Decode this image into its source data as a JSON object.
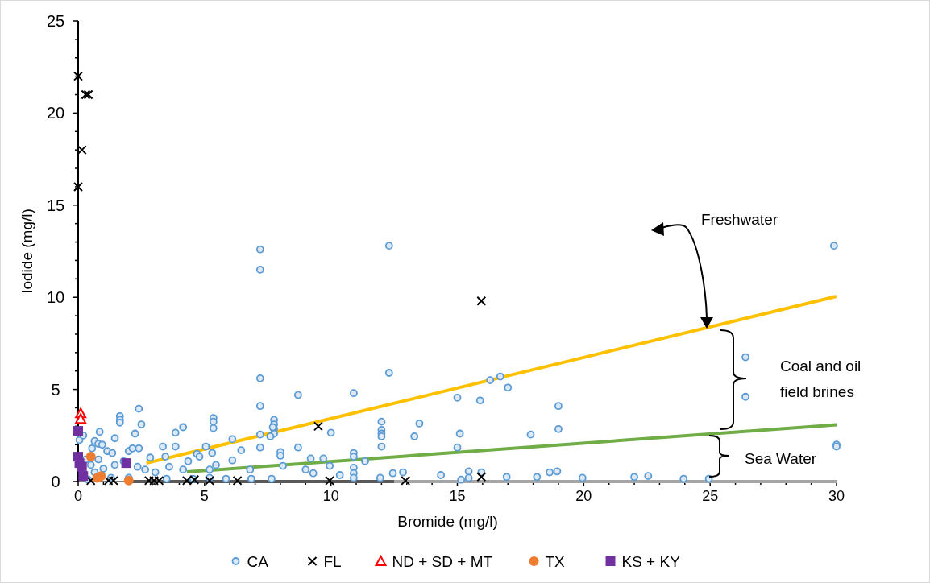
{
  "chart_data": {
    "type": "scatter",
    "xlabel": "Bromide (mg/l)",
    "ylabel": "Iodide (mg/l)",
    "xlim": [
      0,
      30
    ],
    "ylim": [
      0,
      25
    ],
    "xticks": [
      0,
      {
        "value": 1,
        "label": null
      },
      {
        "value": 2,
        "label": null
      },
      {
        "value": 3,
        "label": null
      },
      {
        "value": 4,
        "label": null
      },
      5,
      {
        "value": 6,
        "label": null
      },
      {
        "value": 7,
        "label": null
      },
      {
        "value": 8,
        "label": null
      },
      {
        "value": 9,
        "label": null
      },
      10,
      {
        "value": 11,
        "label": null
      },
      {
        "value": 12,
        "label": null
      },
      {
        "value": 13,
        "label": null
      },
      {
        "value": 14,
        "label": null
      },
      15,
      {
        "value": 16,
        "label": null
      },
      {
        "value": 17,
        "label": null
      },
      {
        "value": 18,
        "label": null
      },
      {
        "value": 19,
        "label": null
      },
      20,
      {
        "value": 21,
        "label": null
      },
      {
        "value": 22,
        "label": null
      },
      {
        "value": 23,
        "label": null
      },
      {
        "value": 24,
        "label": null
      },
      25,
      {
        "value": 26,
        "label": null
      },
      {
        "value": 27,
        "label": null
      },
      {
        "value": 28,
        "label": null
      },
      {
        "value": 29,
        "label": null
      },
      30
    ],
    "yticks": [
      0,
      {
        "value": 1,
        "label": null
      },
      {
        "value": 2,
        "label": null
      },
      {
        "value": 3,
        "label": null
      },
      {
        "value": 4,
        "label": null
      },
      5,
      {
        "value": 6,
        "label": null
      },
      {
        "value": 7,
        "label": null
      },
      {
        "value": 8,
        "label": null
      },
      {
        "value": 9,
        "label": null
      },
      10,
      {
        "value": 11,
        "label": null
      },
      {
        "value": 12,
        "label": null
      },
      {
        "value": 13,
        "label": null
      },
      {
        "value": 14,
        "label": null
      },
      15,
      {
        "value": 16,
        "label": null
      },
      {
        "value": 17,
        "label": null
      },
      {
        "value": 18,
        "label": null
      },
      {
        "value": 19,
        "label": null
      },
      20,
      {
        "value": 21,
        "label": null
      },
      {
        "value": 22,
        "label": null
      },
      {
        "value": 23,
        "label": null
      },
      {
        "value": 24,
        "label": null
      },
      25
    ],
    "grid": false,
    "legend": "bottom",
    "annotations": [
      "Freshwater",
      "Coal and oil field brines",
      "Sea Water"
    ],
    "series": [
      {
        "type": "line",
        "color": "#ffc000",
        "x": [
          2.7,
          30
        ],
        "values": [
          1.0,
          10.05
        ]
      },
      {
        "type": "line",
        "color": "#70ad47",
        "x": [
          4.3,
          30
        ],
        "values": [
          0.52,
          3.08
        ]
      },
      {
        "type": "line",
        "color": "#595959",
        "x": [
          2,
          12.5
        ],
        "values": [
          0,
          0
        ]
      },
      {
        "type": "line",
        "color": "#a6a6a6",
        "x": [
          12.5,
          30
        ],
        "values": [
          0,
          0
        ]
      },
      {
        "name": "CA",
        "color": "#5b9bd5",
        "marker": "circle",
        "x": [
          7.2,
          7.2,
          12.3,
          29.9,
          7.2,
          7.2,
          12.3,
          8.7,
          10.9,
          15.0,
          15.9,
          16.3,
          16.7,
          17.0,
          19.0,
          19.0,
          17.9,
          15.1,
          13.3,
          13.5,
          12.0,
          12.0,
          12.0,
          12.0,
          12.0,
          15.0,
          10.0,
          7.75,
          7.75,
          7.75,
          7.75,
          7.6,
          8.0,
          8.0,
          8.7,
          9.2,
          9.7,
          9.95,
          8.1,
          10.9,
          10.9,
          10.9,
          10.9,
          10.9,
          11.35,
          9.0,
          9.3,
          10.35,
          11.95,
          12.45,
          12.85,
          14.35,
          15.45,
          15.45,
          15.15,
          16.95,
          18.15,
          18.65,
          18.95,
          15.95,
          26.4,
          26.4,
          30.0,
          30.0,
          19.95,
          22.0,
          22.55,
          23.95,
          24.95,
          2.4,
          1.65,
          1.65,
          1.65,
          2.5,
          0.85,
          4.15,
          3.85,
          2.25,
          1.45,
          5.35,
          5.35,
          5.35,
          6.1,
          0.05,
          5.05,
          0.65,
          0.8,
          0.95,
          0.55,
          1.15,
          2.0,
          2.15,
          2.4,
          3.35,
          3.85,
          2.85,
          3.45,
          4.7,
          4.8,
          5.3,
          5.45,
          6.1,
          6.45,
          7.2,
          7.2,
          7.7,
          1.35,
          1.45,
          1.8,
          2.35,
          2.65,
          3.05,
          3.6,
          4.15,
          4.35,
          5.2,
          5.85,
          6.8,
          6.85,
          7.65,
          0.65,
          1.3,
          2.0,
          3.5,
          4.55,
          5.2,
          0.3,
          0.5,
          0.2,
          0.4,
          1.0,
          0.8
        ],
        "values": [
          12.6,
          11.5,
          12.8,
          12.8,
          5.6,
          4.1,
          5.9,
          4.7,
          4.8,
          4.55,
          4.4,
          5.5,
          5.7,
          5.1,
          4.1,
          2.85,
          2.55,
          2.6,
          2.45,
          3.15,
          3.25,
          2.8,
          2.6,
          2.45,
          1.9,
          1.85,
          2.65,
          3.35,
          3.1,
          2.85,
          2.6,
          2.45,
          1.6,
          1.4,
          1.85,
          1.25,
          1.25,
          0.85,
          0.85,
          1.55,
          1.35,
          0.75,
          0.45,
          0.2,
          1.1,
          0.65,
          0.45,
          0.35,
          0.2,
          0.45,
          0.5,
          0.35,
          0.55,
          0.2,
          0.1,
          0.25,
          0.25,
          0.5,
          0.55,
          0.5,
          6.75,
          4.6,
          2.0,
          1.9,
          0.2,
          0.25,
          0.3,
          0.15,
          0.15,
          3.95,
          3.55,
          3.35,
          3.2,
          3.1,
          2.7,
          2.95,
          2.65,
          2.6,
          2.35,
          3.45,
          3.25,
          2.9,
          2.3,
          2.25,
          1.9,
          2.2,
          2.05,
          2.0,
          1.8,
          1.65,
          1.65,
          1.8,
          1.8,
          1.9,
          1.9,
          1.3,
          1.35,
          1.5,
          1.35,
          1.55,
          0.9,
          1.15,
          1.7,
          1.85,
          2.55,
          2.95,
          1.55,
          0.9,
          1.1,
          0.8,
          0.65,
          0.5,
          0.8,
          0.65,
          1.1,
          0.65,
          0.15,
          0.65,
          0.15,
          0.15,
          0.5,
          0.2,
          0.2,
          0.15,
          0.15,
          0.2,
          1.2,
          0.9,
          2.5,
          0.1,
          0.7,
          1.2
        ]
      },
      {
        "name": "FL",
        "color": "#000000",
        "marker": "cross",
        "x": [
          0.0,
          0.3,
          0.4,
          0.15,
          0.0,
          9.5,
          15.95,
          0.5,
          1.2,
          1.4,
          2.8,
          3.0,
          3.2,
          4.3,
          4.6,
          5.2,
          6.3,
          9.95,
          12.95,
          15.95
        ],
        "values": [
          22.0,
          21.0,
          21.0,
          18.0,
          16.0,
          3.0,
          9.8,
          0.05,
          0.05,
          0.05,
          0.05,
          0.05,
          0.05,
          0.05,
          0.1,
          0.05,
          0.05,
          0.05,
          0.05,
          0.25
        ]
      },
      {
        "name": "ND + SD + MT",
        "color": "#ff0000",
        "marker": "triangle",
        "x": [
          0.1,
          0.1
        ],
        "values": [
          3.7,
          3.4
        ]
      },
      {
        "name": "TX",
        "color": "#ed7d31",
        "marker": "circle",
        "x": [
          0.5,
          0.75,
          0.9,
          2.0
        ],
        "values": [
          1.35,
          0.2,
          0.3,
          0.05
        ]
      },
      {
        "name": "KS +  KY",
        "color": "#7030a0",
        "marker": "square",
        "x": [
          0.0,
          0.0,
          0.05,
          1.9,
          0.15,
          0.2
        ],
        "values": [
          2.75,
          1.35,
          1.0,
          1.0,
          0.8,
          0.3
        ]
      }
    ]
  }
}
